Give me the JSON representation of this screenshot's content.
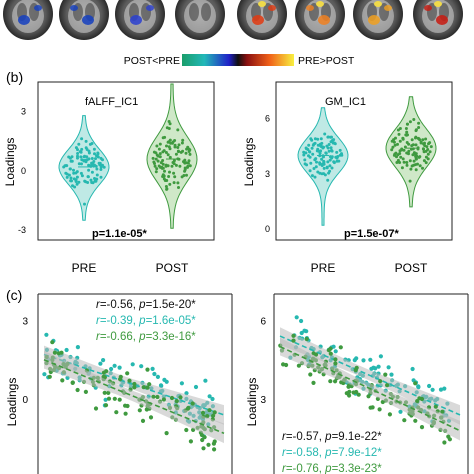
{
  "colors": {
    "pre": "#26b8b0",
    "post": "#3f9a3f",
    "pre_fill": "#bfe9e5",
    "post_fill": "#cfe8c8",
    "ci": "#b9b9b9"
  },
  "panel_a": {
    "colorbar": {
      "left_label": "POST<PRE",
      "right_label": "PRE>POST"
    }
  },
  "panel_b": {
    "label": "(b)"
  },
  "panel_c": {
    "label": "(c)"
  },
  "chart_data": [
    {
      "type": "violin",
      "title": "fALFF_IC1",
      "ylabel": "Loadings",
      "categories": [
        "PRE",
        "POST"
      ],
      "ylim": [
        -3.5,
        4.5
      ],
      "yticks": [
        "3",
        "0",
        "-3"
      ],
      "series": [
        {
          "name": "PRE",
          "median": 0.2,
          "q1": -0.4,
          "q3": 0.8,
          "min": -2.5,
          "max": 2.8
        },
        {
          "name": "POST",
          "median": 0.6,
          "q1": -0.1,
          "q3": 1.4,
          "min": -2.9,
          "max": 4.4
        }
      ],
      "annotation": {
        "text": "p=1.1e-05*"
      }
    },
    {
      "type": "violin",
      "title": "GM_IC1",
      "ylabel": "Loadings",
      "categories": [
        "PRE",
        "POST"
      ],
      "ylim": [
        -0.6,
        8.0
      ],
      "yticks": [
        "6",
        "3",
        "0"
      ],
      "series": [
        {
          "name": "PRE",
          "median": 4.0,
          "q1": 3.3,
          "q3": 4.6,
          "min": 0.2,
          "max": 6.6
        },
        {
          "name": "POST",
          "median": 4.4,
          "q1": 3.7,
          "q3": 5.1,
          "min": 1.2,
          "max": 7.2
        }
      ],
      "annotation": {
        "text": "p=1.5e-07*"
      }
    },
    {
      "type": "scatter",
      "ylabel": "Loadings",
      "ylim": [
        -3,
        4
      ],
      "yticks": [
        "3",
        "0",
        "-3"
      ],
      "series": [
        {
          "name": "PRE",
          "fit": [
            [
              0,
              1.7
            ],
            [
              1,
              -0.6
            ]
          ]
        },
        {
          "name": "POST",
          "fit": [
            [
              0,
              1.5
            ],
            [
              1,
              -1.3
            ]
          ]
        }
      ],
      "annotations": [
        {
          "r": "-0.56",
          "p": "1.5e-20*"
        },
        {
          "r": "-0.39",
          "p": "1.6e-05*"
        },
        {
          "r": "-0.66",
          "p": "3.3e-16*"
        }
      ]
    },
    {
      "type": "scatter",
      "ylabel": "Loadings",
      "ylim": [
        0,
        7
      ],
      "yticks": [
        "6",
        "3"
      ],
      "series": [
        {
          "name": "PRE",
          "fit": [
            [
              0,
              5.4
            ],
            [
              1,
              2.4
            ]
          ]
        },
        {
          "name": "POST",
          "fit": [
            [
              0,
              5.0
            ],
            [
              1,
              1.8
            ]
          ]
        }
      ],
      "annotations": [
        {
          "r": "-0.57",
          "p": "9.1e-22*"
        },
        {
          "r": "-0.58",
          "p": "7.9e-12*"
        },
        {
          "r": "-0.76",
          "p": "3.3e-23*"
        }
      ]
    }
  ]
}
